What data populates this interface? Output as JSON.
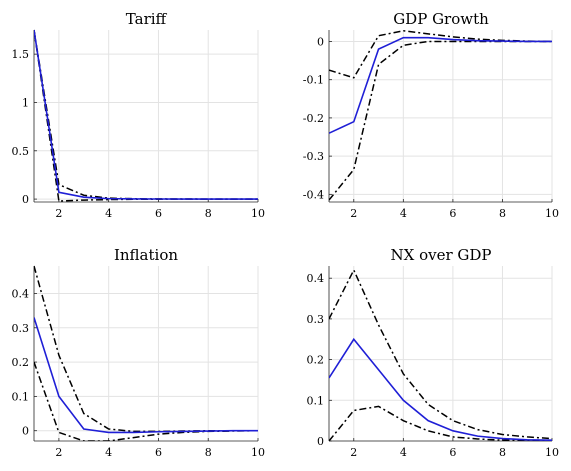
{
  "colors": {
    "median": "#1f1fd6",
    "bands": "#000000",
    "grid": "#e3e3e3",
    "axis": "#262626"
  },
  "chart_data": [
    {
      "type": "line",
      "title": "Tariff",
      "grid": true,
      "xlim": [
        1,
        10
      ],
      "ylim": [
        -0.03,
        1.75
      ],
      "x_ticks": [
        2,
        4,
        6,
        8,
        10
      ],
      "y_ticks": [
        {
          "value": 0,
          "label": "0"
        },
        {
          "value": 0.5,
          "label": "0.5"
        },
        {
          "value": 1,
          "label": "1"
        },
        {
          "value": 1.5,
          "label": "1.5"
        }
      ],
      "x": [
        1,
        2,
        3,
        4,
        5,
        6,
        7,
        8,
        9,
        10
      ],
      "series": [
        {
          "style": "solid",
          "color": "#1f1fd6",
          "values": [
            1.75,
            0.07,
            0.02,
            0.005,
            0.002,
            0.001,
            0.0,
            0.0,
            0.0,
            0.0
          ]
        },
        {
          "style": "dashdot",
          "color": "#000000",
          "values": [
            1.75,
            0.15,
            0.04,
            0.01,
            0.004,
            0.002,
            0.001,
            0.0,
            0.0,
            0.0
          ]
        },
        {
          "style": "dashdot",
          "color": "#000000",
          "values": [
            1.75,
            -0.02,
            -0.01,
            -0.005,
            -0.002,
            -0.001,
            0.0,
            0.0,
            0.0,
            0.0
          ]
        }
      ]
    },
    {
      "type": "line",
      "title": "GDP Growth",
      "grid": true,
      "xlim": [
        1,
        10
      ],
      "ylim": [
        -0.42,
        0.03
      ],
      "x_ticks": [
        2,
        4,
        6,
        8,
        10
      ],
      "y_ticks": [
        {
          "value": 0,
          "label": "0"
        },
        {
          "value": -0.1,
          "label": "-0.1"
        },
        {
          "value": -0.2,
          "label": "-0.2"
        },
        {
          "value": -0.3,
          "label": "-0.3"
        },
        {
          "value": -0.4,
          "label": "-0.4"
        }
      ],
      "x": [
        1,
        2,
        3,
        4,
        5,
        6,
        7,
        8,
        9,
        10
      ],
      "series": [
        {
          "style": "solid",
          "color": "#1f1fd6",
          "values": [
            -0.24,
            -0.21,
            -0.02,
            0.01,
            0.01,
            0.005,
            0.002,
            0.001,
            0.0,
            0.0
          ]
        },
        {
          "style": "dashdot",
          "color": "#000000",
          "values": [
            -0.075,
            -0.095,
            0.015,
            0.028,
            0.02,
            0.012,
            0.006,
            0.003,
            0.001,
            0.0
          ]
        },
        {
          "style": "dashdot",
          "color": "#000000",
          "values": [
            -0.415,
            -0.335,
            -0.06,
            -0.01,
            0.0,
            0.0,
            0.0,
            0.0,
            0.0,
            0.0
          ]
        }
      ]
    },
    {
      "type": "line",
      "title": "Inflation",
      "grid": true,
      "xlim": [
        1,
        10
      ],
      "ylim": [
        -0.03,
        0.48
      ],
      "x_ticks": [
        2,
        4,
        6,
        8,
        10
      ],
      "y_ticks": [
        {
          "value": 0,
          "label": "0"
        },
        {
          "value": 0.1,
          "label": "0.1"
        },
        {
          "value": 0.2,
          "label": "0.2"
        },
        {
          "value": 0.3,
          "label": "0.3"
        },
        {
          "value": 0.4,
          "label": "0.4"
        }
      ],
      "x": [
        1,
        2,
        3,
        4,
        5,
        6,
        7,
        8,
        9,
        10
      ],
      "series": [
        {
          "style": "solid",
          "color": "#1f1fd6",
          "values": [
            0.33,
            0.1,
            0.005,
            -0.005,
            -0.005,
            -0.003,
            -0.002,
            -0.001,
            0.0,
            0.0
          ]
        },
        {
          "style": "dashdot",
          "color": "#000000",
          "values": [
            0.48,
            0.22,
            0.05,
            0.005,
            -0.002,
            -0.002,
            -0.001,
            0.0,
            0.0,
            0.0
          ]
        },
        {
          "style": "dashdot",
          "color": "#000000",
          "values": [
            0.2,
            -0.005,
            -0.03,
            -0.03,
            -0.02,
            -0.01,
            -0.005,
            -0.002,
            -0.001,
            0.0
          ]
        }
      ]
    },
    {
      "type": "line",
      "title": "NX over GDP",
      "grid": true,
      "xlim": [
        1,
        10
      ],
      "ylim": [
        0,
        0.43
      ],
      "x_ticks": [
        2,
        4,
        6,
        8,
        10
      ],
      "y_ticks": [
        {
          "value": 0,
          "label": "0"
        },
        {
          "value": 0.1,
          "label": "0.1"
        },
        {
          "value": 0.2,
          "label": "0.2"
        },
        {
          "value": 0.3,
          "label": "0.3"
        },
        {
          "value": 0.4,
          "label": "0.4"
        }
      ],
      "x": [
        1,
        2,
        3,
        4,
        5,
        6,
        7,
        8,
        9,
        10
      ],
      "series": [
        {
          "style": "solid",
          "color": "#1f1fd6",
          "values": [
            0.155,
            0.25,
            0.175,
            0.1,
            0.05,
            0.025,
            0.012,
            0.006,
            0.003,
            0.002
          ]
        },
        {
          "style": "dashdot",
          "color": "#000000",
          "values": [
            0.3,
            0.42,
            0.285,
            0.165,
            0.09,
            0.05,
            0.028,
            0.016,
            0.01,
            0.006
          ]
        },
        {
          "style": "dashdot",
          "color": "#000000",
          "values": [
            0.0,
            0.075,
            0.085,
            0.05,
            0.025,
            0.01,
            0.005,
            0.002,
            0.001,
            0.0
          ]
        }
      ]
    }
  ]
}
